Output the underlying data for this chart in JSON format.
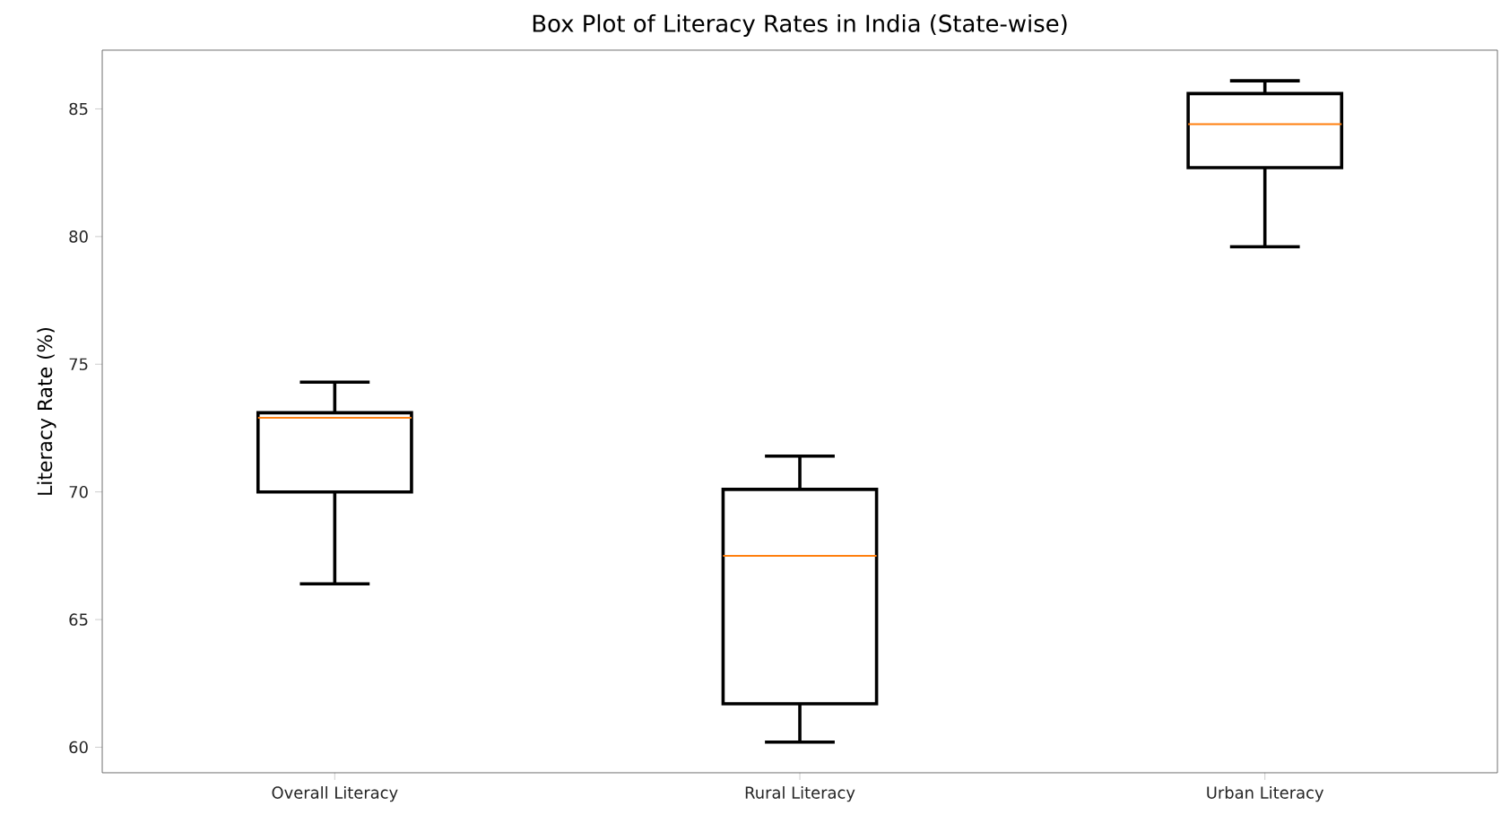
{
  "chart_data": {
    "type": "box",
    "title": "Box Plot of Literacy Rates in India (State-wise)",
    "ylabel": "Literacy Rate (%)",
    "categories": [
      "Overall Literacy",
      "Rural Literacy",
      "Urban Literacy"
    ],
    "boxes": [
      {
        "low": 66.4,
        "q1": 70.0,
        "median": 72.9,
        "q3": 73.1,
        "high": 74.3
      },
      {
        "low": 60.2,
        "q1": 61.7,
        "median": 67.5,
        "q3": 70.1,
        "high": 71.4
      },
      {
        "low": 79.6,
        "q1": 82.7,
        "median": 84.4,
        "q3": 85.6,
        "high": 86.1
      }
    ],
    "color": "#000000",
    "ylim": [
      59.0,
      87.3
    ],
    "yticks": [
      60,
      65,
      70,
      75,
      80,
      85
    ]
  }
}
